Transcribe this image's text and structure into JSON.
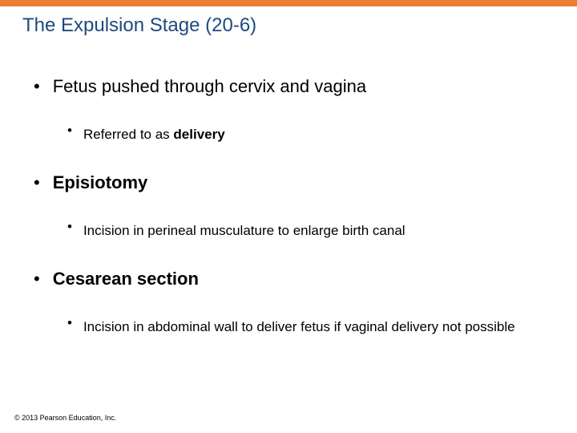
{
  "colors": {
    "accent_bar": "#ed7d31",
    "title_color": "#1f497d",
    "text_color": "#000000",
    "background": "#ffffff"
  },
  "typography": {
    "title_fontsize": 24,
    "l1_fontsize": 22,
    "l2_fontsize": 17,
    "footer_fontsize": 9,
    "font_family": "Arial"
  },
  "title": "The Expulsion Stage (20-6)",
  "bullets": {
    "b1": {
      "pre": "Fetus pushed through cervix and vagina"
    },
    "b1a": {
      "pre": "Referred to as ",
      "bold": "delivery"
    },
    "b2": {
      "bold": "Episiotomy"
    },
    "b2a": {
      "pre": "Incision in perineal musculature to enlarge birth canal"
    },
    "b3": {
      "bold": "Cesarean section"
    },
    "b3a": {
      "pre": "Incision in abdominal wall to deliver fetus if vaginal delivery not possible"
    }
  },
  "footer": "© 2013 Pearson Education, Inc."
}
